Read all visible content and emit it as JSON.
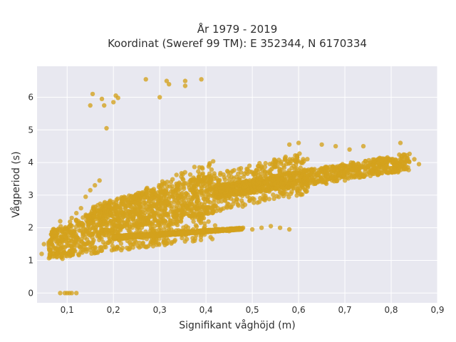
{
  "chart_data": {
    "type": "scatter",
    "title": [
      "År 1979 - 2019",
      "Koordinat (Sweref 99 TM): E 352344, N 6170334"
    ],
    "xlabel": "Signifikant våghöjd (m)",
    "ylabel": "Vågperiod (s)",
    "xlim": [
      0.035,
      0.9
    ],
    "ylim": [
      -0.3,
      6.95
    ],
    "x_ticks": [
      0.1,
      0.2,
      0.3,
      0.4,
      0.5,
      0.6,
      0.7,
      0.8,
      0.9
    ],
    "x_tick_labels": [
      "0,1",
      "0,2",
      "0,3",
      "0,4",
      "0,5",
      "0,6",
      "0,7",
      "0,8",
      "0,9"
    ],
    "y_ticks": [
      0,
      1,
      2,
      3,
      4,
      5,
      6
    ],
    "y_tick_labels": [
      "0",
      "1",
      "2",
      "3",
      "4",
      "5",
      "6"
    ],
    "grid": true,
    "legend": "none",
    "colors": {
      "marker": "#D4A21C",
      "plot_bg": "#E8E8F0",
      "grid": "#FFFFFF",
      "text": "#2F2F2F"
    },
    "series": [
      {
        "values": [
          [
            0.085,
            0.0
          ],
          [
            0.095,
            0.0
          ],
          [
            0.1,
            0.0
          ],
          [
            0.105,
            0.0
          ],
          [
            0.11,
            0.0
          ],
          [
            0.12,
            0.0
          ],
          [
            0.045,
            1.2
          ],
          [
            0.05,
            1.5
          ],
          [
            0.06,
            1.55
          ],
          [
            0.07,
            1.2
          ],
          [
            0.075,
            1.6
          ],
          [
            0.08,
            1.85
          ],
          [
            0.085,
            2.2
          ],
          [
            0.09,
            1.05
          ],
          [
            0.095,
            1.4
          ],
          [
            0.1,
            1.8
          ],
          [
            0.105,
            2.05
          ],
          [
            0.11,
            2.3
          ],
          [
            0.12,
            2.45
          ],
          [
            0.13,
            2.6
          ],
          [
            0.14,
            2.95
          ],
          [
            0.15,
            3.15
          ],
          [
            0.16,
            3.3
          ],
          [
            0.17,
            3.45
          ],
          [
            0.155,
            6.1
          ],
          [
            0.175,
            5.95
          ],
          [
            0.18,
            5.75
          ],
          [
            0.2,
            5.85
          ],
          [
            0.205,
            6.05
          ],
          [
            0.21,
            5.98
          ],
          [
            0.15,
            5.75
          ],
          [
            0.185,
            5.05
          ],
          [
            0.27,
            6.55
          ],
          [
            0.3,
            6.0
          ],
          [
            0.315,
            6.5
          ],
          [
            0.32,
            6.4
          ],
          [
            0.355,
            6.5
          ],
          [
            0.355,
            6.35
          ],
          [
            0.39,
            6.55
          ],
          [
            0.58,
            4.55
          ],
          [
            0.6,
            4.6
          ],
          [
            0.65,
            4.55
          ],
          [
            0.68,
            4.5
          ],
          [
            0.71,
            4.4
          ],
          [
            0.74,
            4.5
          ],
          [
            0.82,
            4.6
          ],
          [
            0.85,
            4.1
          ],
          [
            0.86,
            3.95
          ],
          [
            0.83,
            3.8
          ],
          [
            0.79,
            3.7
          ],
          [
            0.76,
            3.65
          ],
          [
            0.72,
            3.55
          ],
          [
            0.7,
            3.45
          ],
          [
            0.66,
            3.35
          ],
          [
            0.62,
            3.3
          ],
          [
            0.56,
            3.1
          ],
          [
            0.48,
            2.0
          ],
          [
            0.5,
            1.95
          ],
          [
            0.52,
            2.0
          ],
          [
            0.54,
            2.05
          ],
          [
            0.56,
            2.0
          ],
          [
            0.58,
            1.95
          ],
          [
            0.45,
            1.9
          ],
          [
            0.42,
            1.88
          ],
          [
            0.38,
            1.85
          ],
          [
            0.34,
            1.8
          ],
          [
            0.3,
            1.75
          ],
          [
            0.26,
            1.7
          ]
        ],
        "bands": [
          {
            "x_from": 0.06,
            "x_to": 0.42,
            "y_low_from": 1.05,
            "y_low_to": 1.65,
            "y_high_from": 1.9,
            "y_high_to": 4.15
          },
          {
            "x_from": 0.15,
            "x_to": 0.62,
            "y_low_from": 1.7,
            "y_low_to": 3.05,
            "y_high_from": 2.7,
            "y_high_to": 4.35
          },
          {
            "x_from": 0.42,
            "x_to": 0.84,
            "y_low_from": 2.9,
            "y_low_to": 3.75,
            "y_high_from": 3.3,
            "y_high_to": 4.3
          },
          {
            "x_from": 0.2,
            "x_to": 0.48,
            "y_low_from": 1.65,
            "y_low_to": 1.95,
            "y_high_from": 1.75,
            "y_high_to": 2.0
          }
        ]
      }
    ]
  }
}
